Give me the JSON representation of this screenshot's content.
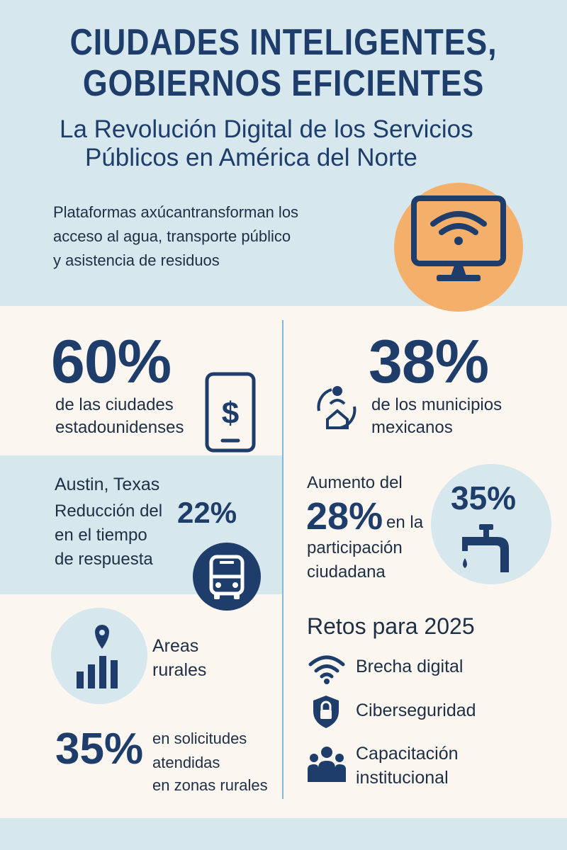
{
  "header": {
    "title_line1": "CIUDADES INTELIGENTES,",
    "title_line2": "GOBIERNOS EFICIENTES",
    "subtitle_line1": "La Revolución Digital de los Servicios",
    "subtitle_line2": "Públicos en América del Norte",
    "intro_line1": "Plataformas axúcantransforman los",
    "intro_line2": "acceso al agua, transporte público",
    "intro_line3": "y asistencia de residuos",
    "icon": "monitor-wifi-icon"
  },
  "left": {
    "stat1": {
      "value": "60%",
      "line1": "de las ciudades",
      "line2": "estadounidenses",
      "icon": "phone-dollar-icon"
    },
    "austin": {
      "city": "Austin, Texas",
      "line1": "Reducción del",
      "value": "22%",
      "line2": "en el tiempo",
      "line3": "de respuesta",
      "icon": "bus-icon"
    },
    "rural": {
      "line1": "Areas",
      "line2": "rurales",
      "value": "35%",
      "desc1": "en solicitudes",
      "desc2": "atendidas",
      "desc3": "en zonas rurales",
      "icon": "rural-chart-icon"
    }
  },
  "right": {
    "stat1": {
      "value": "38%",
      "line1": "de los municipios",
      "line2": "mexicanos",
      "icon": "citizen-home-icon"
    },
    "participation": {
      "line1": "Aumento del",
      "value": "28%",
      "suffix": "en la",
      "line2": "participación",
      "line3": "ciudadana",
      "badge": "35%",
      "icon": "water-tap-icon"
    },
    "challenges": {
      "title": "Retos para 2025",
      "items": [
        {
          "label": "Brecha digital",
          "icon": "wifi-icon"
        },
        {
          "label": "Ciberseguridad",
          "icon": "shield-lock-icon"
        },
        {
          "label_line1": "Capacitación",
          "label_line2": "institucional",
          "icon": "people-icon"
        }
      ]
    }
  },
  "colors": {
    "navy": "#1e3d6b",
    "pale_blue": "#d6e8ed",
    "orange": "#f4b06a",
    "cream": "#fbf7f0",
    "divider": "#7fb9d3"
  }
}
